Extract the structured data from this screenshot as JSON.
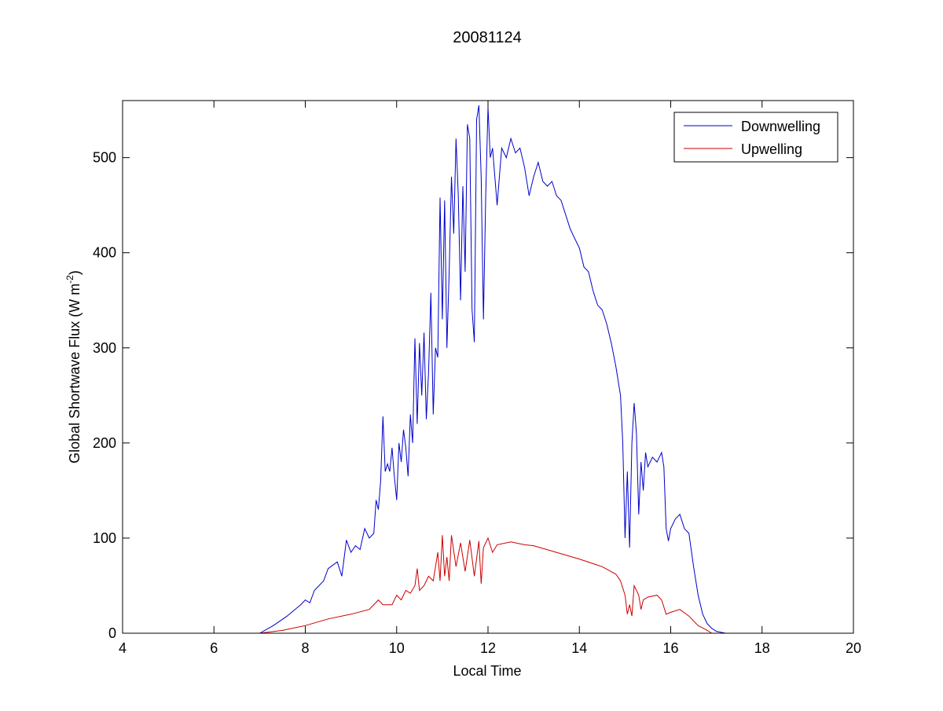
{
  "chart_data": {
    "type": "line",
    "title": "20081124",
    "xlabel": "Local Time",
    "ylabel": "Global Shortwave Flux (W m",
    "ylabel_superscript": "-2",
    "ylabel_suffix": ")",
    "xlim": [
      4,
      20
    ],
    "ylim": [
      0,
      560
    ],
    "xticks": [
      4,
      6,
      8,
      10,
      12,
      14,
      16,
      18,
      20
    ],
    "yticks": [
      0,
      100,
      200,
      300,
      400,
      500
    ],
    "grid": false,
    "legend_position": "top-right",
    "series": [
      {
        "name": "Downwelling",
        "color": "#0000cc",
        "points": [
          [
            5.2,
            0
          ],
          [
            7.0,
            0
          ],
          [
            7.3,
            8
          ],
          [
            7.6,
            18
          ],
          [
            7.9,
            30
          ],
          [
            8.0,
            35
          ],
          [
            8.1,
            32
          ],
          [
            8.2,
            45
          ],
          [
            8.4,
            55
          ],
          [
            8.5,
            68
          ],
          [
            8.7,
            75
          ],
          [
            8.8,
            60
          ],
          [
            8.9,
            98
          ],
          [
            9.0,
            85
          ],
          [
            9.1,
            92
          ],
          [
            9.2,
            88
          ],
          [
            9.3,
            110
          ],
          [
            9.4,
            100
          ],
          [
            9.5,
            105
          ],
          [
            9.55,
            140
          ],
          [
            9.6,
            130
          ],
          [
            9.65,
            160
          ],
          [
            9.7,
            228
          ],
          [
            9.75,
            170
          ],
          [
            9.8,
            178
          ],
          [
            9.85,
            170
          ],
          [
            9.9,
            195
          ],
          [
            9.95,
            165
          ],
          [
            10.0,
            140
          ],
          [
            10.05,
            200
          ],
          [
            10.1,
            180
          ],
          [
            10.15,
            214
          ],
          [
            10.2,
            195
          ],
          [
            10.25,
            165
          ],
          [
            10.3,
            230
          ],
          [
            10.35,
            200
          ],
          [
            10.4,
            310
          ],
          [
            10.45,
            220
          ],
          [
            10.5,
            305
          ],
          [
            10.55,
            250
          ],
          [
            10.6,
            316
          ],
          [
            10.65,
            225
          ],
          [
            10.7,
            275
          ],
          [
            10.75,
            358
          ],
          [
            10.8,
            230
          ],
          [
            10.85,
            300
          ],
          [
            10.9,
            290
          ],
          [
            10.95,
            458
          ],
          [
            11.0,
            330
          ],
          [
            11.05,
            455
          ],
          [
            11.1,
            300
          ],
          [
            11.15,
            380
          ],
          [
            11.2,
            480
          ],
          [
            11.25,
            420
          ],
          [
            11.3,
            520
          ],
          [
            11.35,
            460
          ],
          [
            11.4,
            350
          ],
          [
            11.45,
            470
          ],
          [
            11.5,
            380
          ],
          [
            11.55,
            535
          ],
          [
            11.6,
            520
          ],
          [
            11.65,
            340
          ],
          [
            11.7,
            306
          ],
          [
            11.75,
            540
          ],
          [
            11.8,
            555
          ],
          [
            11.85,
            480
          ],
          [
            11.9,
            330
          ],
          [
            11.95,
            460
          ],
          [
            12.0,
            553
          ],
          [
            12.05,
            500
          ],
          [
            12.1,
            510
          ],
          [
            12.15,
            480
          ],
          [
            12.2,
            450
          ],
          [
            12.3,
            510
          ],
          [
            12.4,
            500
          ],
          [
            12.5,
            520
          ],
          [
            12.6,
            505
          ],
          [
            12.7,
            510
          ],
          [
            12.8,
            490
          ],
          [
            12.9,
            460
          ],
          [
            13.0,
            480
          ],
          [
            13.1,
            495
          ],
          [
            13.2,
            475
          ],
          [
            13.3,
            470
          ],
          [
            13.4,
            475
          ],
          [
            13.5,
            460
          ],
          [
            13.6,
            455
          ],
          [
            13.7,
            440
          ],
          [
            13.8,
            425
          ],
          [
            13.9,
            415
          ],
          [
            14.0,
            405
          ],
          [
            14.1,
            385
          ],
          [
            14.2,
            380
          ],
          [
            14.3,
            360
          ],
          [
            14.4,
            345
          ],
          [
            14.5,
            340
          ],
          [
            14.6,
            325
          ],
          [
            14.7,
            305
          ],
          [
            14.8,
            280
          ],
          [
            14.9,
            250
          ],
          [
            14.95,
            200
          ],
          [
            15.0,
            100
          ],
          [
            15.05,
            170
          ],
          [
            15.1,
            90
          ],
          [
            15.15,
            200
          ],
          [
            15.2,
            242
          ],
          [
            15.25,
            210
          ],
          [
            15.3,
            125
          ],
          [
            15.35,
            180
          ],
          [
            15.4,
            150
          ],
          [
            15.45,
            190
          ],
          [
            15.5,
            175
          ],
          [
            15.6,
            185
          ],
          [
            15.7,
            180
          ],
          [
            15.8,
            190
          ],
          [
            15.85,
            175
          ],
          [
            15.9,
            110
          ],
          [
            15.95,
            97
          ],
          [
            16.0,
            110
          ],
          [
            16.1,
            120
          ],
          [
            16.2,
            125
          ],
          [
            16.3,
            110
          ],
          [
            16.4,
            105
          ],
          [
            16.5,
            70
          ],
          [
            16.6,
            40
          ],
          [
            16.7,
            20
          ],
          [
            16.8,
            10
          ],
          [
            16.9,
            5
          ],
          [
            17.0,
            2
          ],
          [
            17.2,
            0
          ]
        ]
      },
      {
        "name": "Upwelling",
        "color": "#cc0000",
        "points": [
          [
            5.2,
            0
          ],
          [
            7.0,
            0
          ],
          [
            7.5,
            3
          ],
          [
            8.0,
            8
          ],
          [
            8.5,
            15
          ],
          [
            9.0,
            20
          ],
          [
            9.4,
            25
          ],
          [
            9.6,
            35
          ],
          [
            9.7,
            30
          ],
          [
            9.9,
            30
          ],
          [
            10.0,
            40
          ],
          [
            10.1,
            35
          ],
          [
            10.2,
            45
          ],
          [
            10.3,
            42
          ],
          [
            10.4,
            50
          ],
          [
            10.45,
            68
          ],
          [
            10.5,
            45
          ],
          [
            10.6,
            50
          ],
          [
            10.7,
            60
          ],
          [
            10.8,
            55
          ],
          [
            10.9,
            85
          ],
          [
            10.95,
            55
          ],
          [
            11.0,
            103
          ],
          [
            11.05,
            60
          ],
          [
            11.1,
            80
          ],
          [
            11.15,
            55
          ],
          [
            11.2,
            103
          ],
          [
            11.3,
            70
          ],
          [
            11.4,
            95
          ],
          [
            11.5,
            65
          ],
          [
            11.6,
            98
          ],
          [
            11.7,
            60
          ],
          [
            11.8,
            97
          ],
          [
            11.85,
            52
          ],
          [
            11.9,
            90
          ],
          [
            12.0,
            100
          ],
          [
            12.1,
            85
          ],
          [
            12.2,
            93
          ],
          [
            12.5,
            96
          ],
          [
            12.8,
            93
          ],
          [
            13.0,
            92
          ],
          [
            13.5,
            85
          ],
          [
            14.0,
            78
          ],
          [
            14.5,
            70
          ],
          [
            14.8,
            62
          ],
          [
            14.9,
            55
          ],
          [
            15.0,
            40
          ],
          [
            15.05,
            20
          ],
          [
            15.1,
            30
          ],
          [
            15.15,
            18
          ],
          [
            15.2,
            50
          ],
          [
            15.3,
            40
          ],
          [
            15.35,
            25
          ],
          [
            15.4,
            35
          ],
          [
            15.5,
            38
          ],
          [
            15.7,
            40
          ],
          [
            15.8,
            35
          ],
          [
            15.9,
            20
          ],
          [
            16.0,
            22
          ],
          [
            16.2,
            25
          ],
          [
            16.4,
            18
          ],
          [
            16.6,
            8
          ],
          [
            16.8,
            3
          ],
          [
            16.9,
            0
          ]
        ]
      }
    ]
  }
}
